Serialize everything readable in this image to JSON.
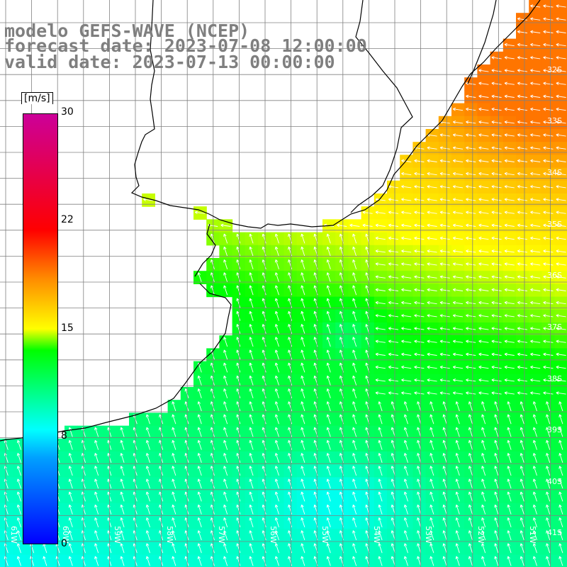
{
  "title": {
    "line1": "modelo GEFS-WAVE (NCEP)",
    "line2": "forecast date: 2023-07-08 12:00:00",
    "line3": "valid date: 2023-07-13 00:00:00"
  },
  "colorbar": {
    "unit": "[m/s]",
    "min": 0,
    "max": 30,
    "ticks": [
      {
        "value": 30,
        "label": "30"
      },
      {
        "value": 22,
        "label": "22"
      },
      {
        "value": 15,
        "label": "15"
      },
      {
        "value": 8,
        "label": "8"
      },
      {
        "value": 0,
        "label": "0"
      }
    ],
    "stops": [
      {
        "value": 0,
        "color": "#0000ff"
      },
      {
        "value": 6,
        "color": "#00a0ff"
      },
      {
        "value": 8,
        "color": "#00ffff"
      },
      {
        "value": 13.5,
        "color": "#00ff00"
      },
      {
        "value": 15,
        "color": "#ffff00"
      },
      {
        "value": 18.5,
        "color": "#ff8800"
      },
      {
        "value": 22,
        "color": "#ff0000"
      },
      {
        "value": 30,
        "color": "#cc0099"
      }
    ]
  },
  "lat_labels": [
    "32S",
    "33S",
    "34S",
    "35S",
    "36S",
    "37S",
    "38S",
    "39S",
    "40S",
    "41S"
  ],
  "lon_labels": [
    "61W",
    "60W",
    "59W",
    "58W",
    "57W",
    "56W",
    "55W",
    "54W",
    "53W",
    "52W",
    "51W"
  ],
  "colors": {
    "land": "#ffffff",
    "grid": "#808080",
    "coast": "#000000",
    "title": "#7f7f7f",
    "arrow": "#ffffff"
  },
  "map_info": {
    "lat_range": [
      -41.5,
      -31.2
    ],
    "lon_range": [
      -61.2,
      -50.5
    ],
    "wind_direction_note": "from southeast / southwest"
  }
}
